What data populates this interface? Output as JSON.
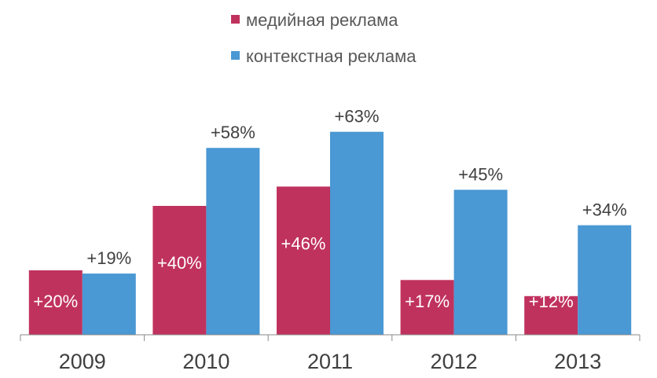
{
  "chart_data": {
    "type": "bar",
    "categories": [
      "2009",
      "2010",
      "2011",
      "2012",
      "2013"
    ],
    "series": [
      {
        "name": "медийная реклама",
        "color": "#C0325E",
        "values": [
          20,
          40,
          46,
          17,
          12
        ],
        "labels": [
          "+20%",
          "+40%",
          "+46%",
          "+17%",
          "+12%"
        ],
        "label_position": "inside"
      },
      {
        "name": "контекстная реклама",
        "color": "#4A98D4",
        "values": [
          19,
          58,
          63,
          45,
          34
        ],
        "labels": [
          "+19%",
          "+58%",
          "+63%",
          "+45%",
          "+34%"
        ],
        "label_position": "above"
      }
    ],
    "ylim": [
      0,
      63
    ],
    "grid": false,
    "legend": "top-center",
    "title": "",
    "xlabel": "",
    "ylabel": "",
    "label_colors": {
      "inside": "#FFFFFF",
      "above": "#404040"
    },
    "axis_color": "#888888"
  }
}
